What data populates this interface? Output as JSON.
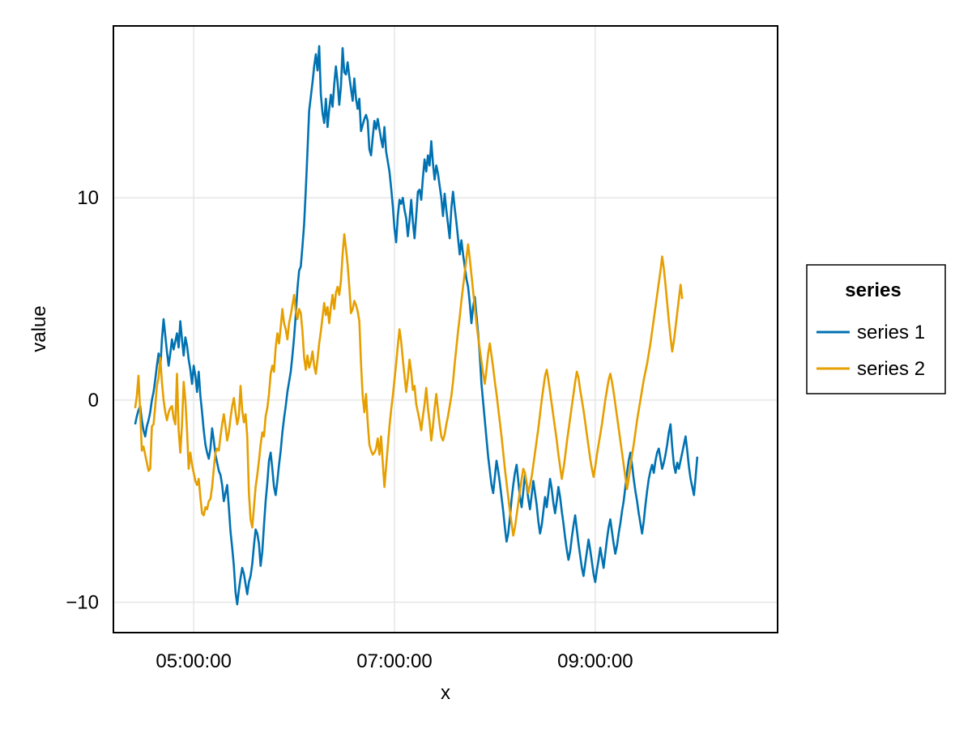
{
  "chart_data": {
    "type": "line",
    "xlabel": "x",
    "ylabel": "value",
    "x_start": "04:25:00",
    "x_step_minutes": 1,
    "xlim": [
      "04:12:00",
      "10:49:00"
    ],
    "ylim": [
      -11.5,
      18.5
    ],
    "x_ticks": [
      "05:00:00",
      "07:00:00",
      "09:00:00"
    ],
    "y_ticks": [
      -10,
      0,
      10
    ],
    "y_tick_labels": [
      "−10",
      "0",
      "10"
    ],
    "grid": true,
    "legend": {
      "title": "series",
      "placement": "right",
      "entries": [
        "series 1",
        "series 2"
      ]
    },
    "series": [
      {
        "name": "series 1",
        "color": "#0072B2",
        "values": [
          -1.2,
          -0.8,
          -0.5,
          -0.3,
          -1.0,
          -1.5,
          -1.8,
          -1.3,
          -1.0,
          -0.6,
          0.0,
          0.4,
          1.0,
          1.7,
          2.3,
          1.5,
          3.0,
          4.0,
          3.2,
          2.4,
          1.7,
          2.3,
          3.0,
          2.5,
          2.9,
          3.3,
          2.6,
          3.9,
          3.0,
          2.2,
          3.1,
          2.7,
          2.0,
          1.5,
          0.8,
          1.7,
          1.2,
          0.4,
          1.4,
          0.2,
          -0.6,
          -1.5,
          -2.2,
          -2.6,
          -2.9,
          -2.4,
          -1.4,
          -2.0,
          -2.7,
          -3.1,
          -3.5,
          -3.7,
          -4.2,
          -5.0,
          -4.6,
          -4.2,
          -5.3,
          -6.5,
          -7.3,
          -8.2,
          -9.5,
          -10.1,
          -9.4,
          -8.8,
          -8.3,
          -8.6,
          -9.1,
          -9.6,
          -9.0,
          -8.7,
          -8.1,
          -7.2,
          -6.4,
          -6.6,
          -7.1,
          -8.2,
          -7.5,
          -6.2,
          -5.0,
          -4.1,
          -3.0,
          -2.6,
          -3.4,
          -4.3,
          -4.7,
          -4.0,
          -3.2,
          -2.5,
          -1.6,
          -0.9,
          -0.3,
          0.4,
          0.9,
          1.4,
          2.2,
          3.1,
          4.2,
          5.5,
          6.4,
          6.6,
          7.6,
          8.7,
          10.4,
          12.3,
          14.3,
          15.0,
          15.7,
          16.5,
          17.1,
          16.3,
          17.5,
          15.1,
          14.2,
          13.7,
          14.9,
          13.5,
          14.4,
          15.1,
          14.5,
          15.6,
          16.5,
          15.7,
          14.6,
          15.5,
          17.4,
          16.2,
          16.1,
          16.7,
          16.0,
          15.4,
          14.8,
          15.9,
          14.9,
          14.4,
          14.9,
          13.3,
          13.6,
          13.9,
          14.1,
          13.8,
          12.4,
          12.1,
          13.0,
          13.8,
          13.4,
          13.9,
          13.4,
          12.9,
          12.5,
          13.5,
          12.3,
          11.8,
          11.3,
          10.5,
          9.6,
          8.5,
          7.8,
          9.1,
          9.9,
          9.7,
          10.0,
          9.4,
          9.0,
          8.1,
          8.9,
          9.9,
          8.8,
          8.0,
          9.1,
          10.3,
          10.4,
          9.9,
          11.0,
          11.9,
          11.3,
          12.1,
          11.6,
          12.8,
          11.7,
          10.9,
          11.6,
          11.2,
          10.6,
          10.0,
          9.1,
          10.2,
          9.4,
          8.7,
          8.0,
          9.5,
          10.3,
          9.5,
          8.8,
          8.0,
          7.2,
          7.9,
          7.2,
          6.6,
          6.0,
          5.6,
          4.8,
          3.8,
          4.6,
          5.1,
          4.2,
          3.3,
          2.2,
          0.8,
          -0.1,
          -1.0,
          -1.9,
          -2.8,
          -3.5,
          -4.2,
          -4.6,
          -3.8,
          -3.0,
          -3.5,
          -4.1,
          -4.8,
          -5.5,
          -6.3,
          -7.0,
          -6.6,
          -5.8,
          -4.9,
          -4.2,
          -3.6,
          -3.2,
          -4.0,
          -4.8,
          -5.3,
          -4.5,
          -3.7,
          -4.2,
          -4.9,
          -5.4,
          -4.7,
          -4.0,
          -4.6,
          -5.2,
          -6.0,
          -6.6,
          -6.2,
          -5.5,
          -4.8,
          -5.3,
          -4.6,
          -3.9,
          -4.4,
          -5.1,
          -5.6,
          -5.0,
          -4.3,
          -4.8,
          -5.5,
          -6.1,
          -6.8,
          -7.4,
          -7.9,
          -7.5,
          -6.8,
          -6.2,
          -5.7,
          -6.4,
          -7.1,
          -7.7,
          -8.3,
          -8.7,
          -8.1,
          -7.5,
          -6.9,
          -7.4,
          -8.0,
          -8.6,
          -9.0,
          -8.4,
          -7.9,
          -7.3,
          -7.8,
          -8.3,
          -7.6,
          -6.9,
          -6.3,
          -5.9,
          -6.5,
          -7.1,
          -7.6,
          -7.2,
          -6.6,
          -6.1,
          -5.5,
          -5.0,
          -4.3,
          -3.6,
          -3.0,
          -2.6,
          -3.2,
          -3.9,
          -4.5,
          -5.0,
          -5.6,
          -6.1,
          -6.6,
          -6.0,
          -5.2,
          -4.5,
          -3.9,
          -3.5,
          -3.2,
          -3.6,
          -3.0,
          -2.6,
          -2.4,
          -2.9,
          -3.4,
          -3.1,
          -2.7,
          -2.2,
          -1.6,
          -1.2,
          -2.3,
          -3.2,
          -3.6,
          -3.1,
          -3.4,
          -3.0,
          -2.6,
          -2.2,
          -1.8,
          -2.5,
          -3.3,
          -3.9,
          -4.3,
          -4.7,
          -3.8,
          -2.8
        ]
      },
      {
        "name": "series 2",
        "color": "#E69F00",
        "values": [
          -0.4,
          0.2,
          1.2,
          -0.6,
          -2.5,
          -2.3,
          -2.7,
          -3.1,
          -3.5,
          -3.4,
          -1.3,
          -1.2,
          -0.3,
          0.7,
          1.1,
          2.1,
          0.9,
          0.0,
          -0.6,
          -1.0,
          -0.6,
          -0.4,
          -0.3,
          -0.9,
          -1.2,
          1.3,
          -1.5,
          -2.6,
          -1.2,
          0.9,
          0.0,
          -1.5,
          -3.4,
          -2.6,
          -3.2,
          -3.6,
          -4.0,
          -4.2,
          -3.9,
          -4.8,
          -5.6,
          -5.7,
          -5.3,
          -5.4,
          -5.0,
          -4.9,
          -4.3,
          -3.4,
          -2.6,
          -2.4,
          -2.5,
          -1.8,
          -1.2,
          -0.7,
          -1.3,
          -2.0,
          -1.6,
          -0.9,
          -0.3,
          0.1,
          -0.6,
          -1.2,
          -0.8,
          0.7,
          -0.5,
          -1.1,
          -0.7,
          -1.8,
          -4.6,
          -5.9,
          -6.3,
          -5.3,
          -4.3,
          -3.7,
          -3.0,
          -2.2,
          -1.6,
          -1.8,
          -0.8,
          -0.4,
          0.3,
          1.3,
          1.7,
          1.4,
          2.6,
          3.3,
          2.8,
          3.6,
          4.5,
          3.8,
          3.5,
          3.0,
          3.8,
          4.2,
          4.7,
          5.2,
          4.4,
          4.0,
          4.5,
          4.3,
          3.4,
          2.1,
          1.5,
          2.2,
          1.6,
          1.9,
          2.4,
          1.7,
          1.3,
          2.0,
          2.8,
          3.4,
          4.1,
          4.8,
          4.2,
          4.6,
          3.8,
          4.6,
          5.2,
          4.5,
          5.3,
          5.6,
          5.2,
          5.9,
          7.2,
          8.2,
          7.5,
          6.7,
          5.6,
          4.3,
          4.5,
          4.9,
          4.7,
          4.4,
          3.9,
          1.8,
          0.2,
          -0.6,
          0.3,
          -1.1,
          -2.2,
          -2.5,
          -2.7,
          -2.6,
          -2.4,
          -1.9,
          -2.7,
          -1.8,
          -3.1,
          -4.3,
          -3.3,
          -2.3,
          -1.3,
          -0.5,
          0.2,
          1.0,
          1.8,
          2.7,
          3.5,
          2.9,
          2.0,
          1.2,
          0.4,
          1.1,
          2.0,
          1.4,
          0.5,
          0.7,
          -0.2,
          -0.6,
          -1.0,
          -1.5,
          -0.8,
          -0.2,
          0.6,
          -0.4,
          -1.1,
          -2.0,
          -1.3,
          -0.4,
          0.3,
          -0.5,
          -1.2,
          -1.8,
          -2.0,
          -1.7,
          -1.2,
          -0.8,
          -0.3,
          0.2,
          0.9,
          1.8,
          2.6,
          3.4,
          4.1,
          4.9,
          5.6,
          6.3,
          7.0,
          7.7,
          7.0,
          6.2,
          5.4,
          4.6,
          3.8,
          3.1,
          2.5,
          1.9,
          1.3,
          0.8,
          1.5,
          2.3,
          2.8,
          2.2,
          1.6,
          0.9,
          0.3,
          -0.4,
          -1.1,
          -1.8,
          -2.6,
          -3.4,
          -4.1,
          -4.8,
          -5.5,
          -6.1,
          -6.7,
          -6.3,
          -5.7,
          -5.1,
          -4.5,
          -3.9,
          -3.4,
          -3.6,
          -4.1,
          -4.6,
          -4.2,
          -3.8,
          -3.2,
          -2.6,
          -2.0,
          -1.4,
          -0.7,
          0.0,
          0.6,
          1.2,
          1.5,
          1.0,
          0.4,
          -0.2,
          -0.8,
          -1.4,
          -2.0,
          -2.7,
          -3.3,
          -3.9,
          -3.4,
          -2.8,
          -2.1,
          -1.5,
          -0.9,
          -0.3,
          0.3,
          0.9,
          1.4,
          1.1,
          0.5,
          0.0,
          -0.5,
          -1.1,
          -1.7,
          -2.3,
          -2.9,
          -3.4,
          -3.8,
          -3.3,
          -2.7,
          -2.2,
          -1.7,
          -1.2,
          -0.6,
          0.0,
          0.5,
          1.0,
          1.3,
          0.9,
          0.4,
          -0.2,
          -0.8,
          -1.4,
          -2.0,
          -2.6,
          -3.2,
          -3.8,
          -4.4,
          -3.9,
          -3.3,
          -2.7,
          -2.2,
          -1.6,
          -1.0,
          -0.5,
          0.0,
          0.5,
          1.0,
          1.4,
          1.8,
          2.3,
          2.8,
          3.4,
          4.0,
          4.6,
          5.2,
          5.8,
          6.4,
          7.1,
          6.5,
          5.7,
          4.8,
          3.9,
          3.1,
          2.4,
          2.9,
          3.6,
          4.3,
          5.0,
          5.7,
          5.0
        ]
      }
    ]
  }
}
